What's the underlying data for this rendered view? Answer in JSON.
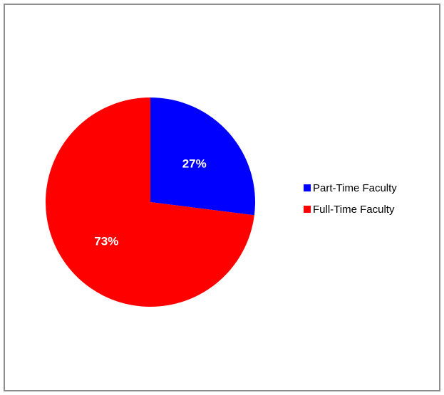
{
  "chart_data": {
    "type": "pie",
    "title": "",
    "slices": [
      {
        "label": "Part-Time Faculty",
        "value": 27,
        "display": "27%",
        "color": "#0000ff"
      },
      {
        "label": "Full-Time Faculty",
        "value": 73,
        "display": "73%",
        "color": "#ff0000"
      }
    ],
    "legend_position": "right",
    "start_angle": "12 o'clock, clockwise"
  }
}
